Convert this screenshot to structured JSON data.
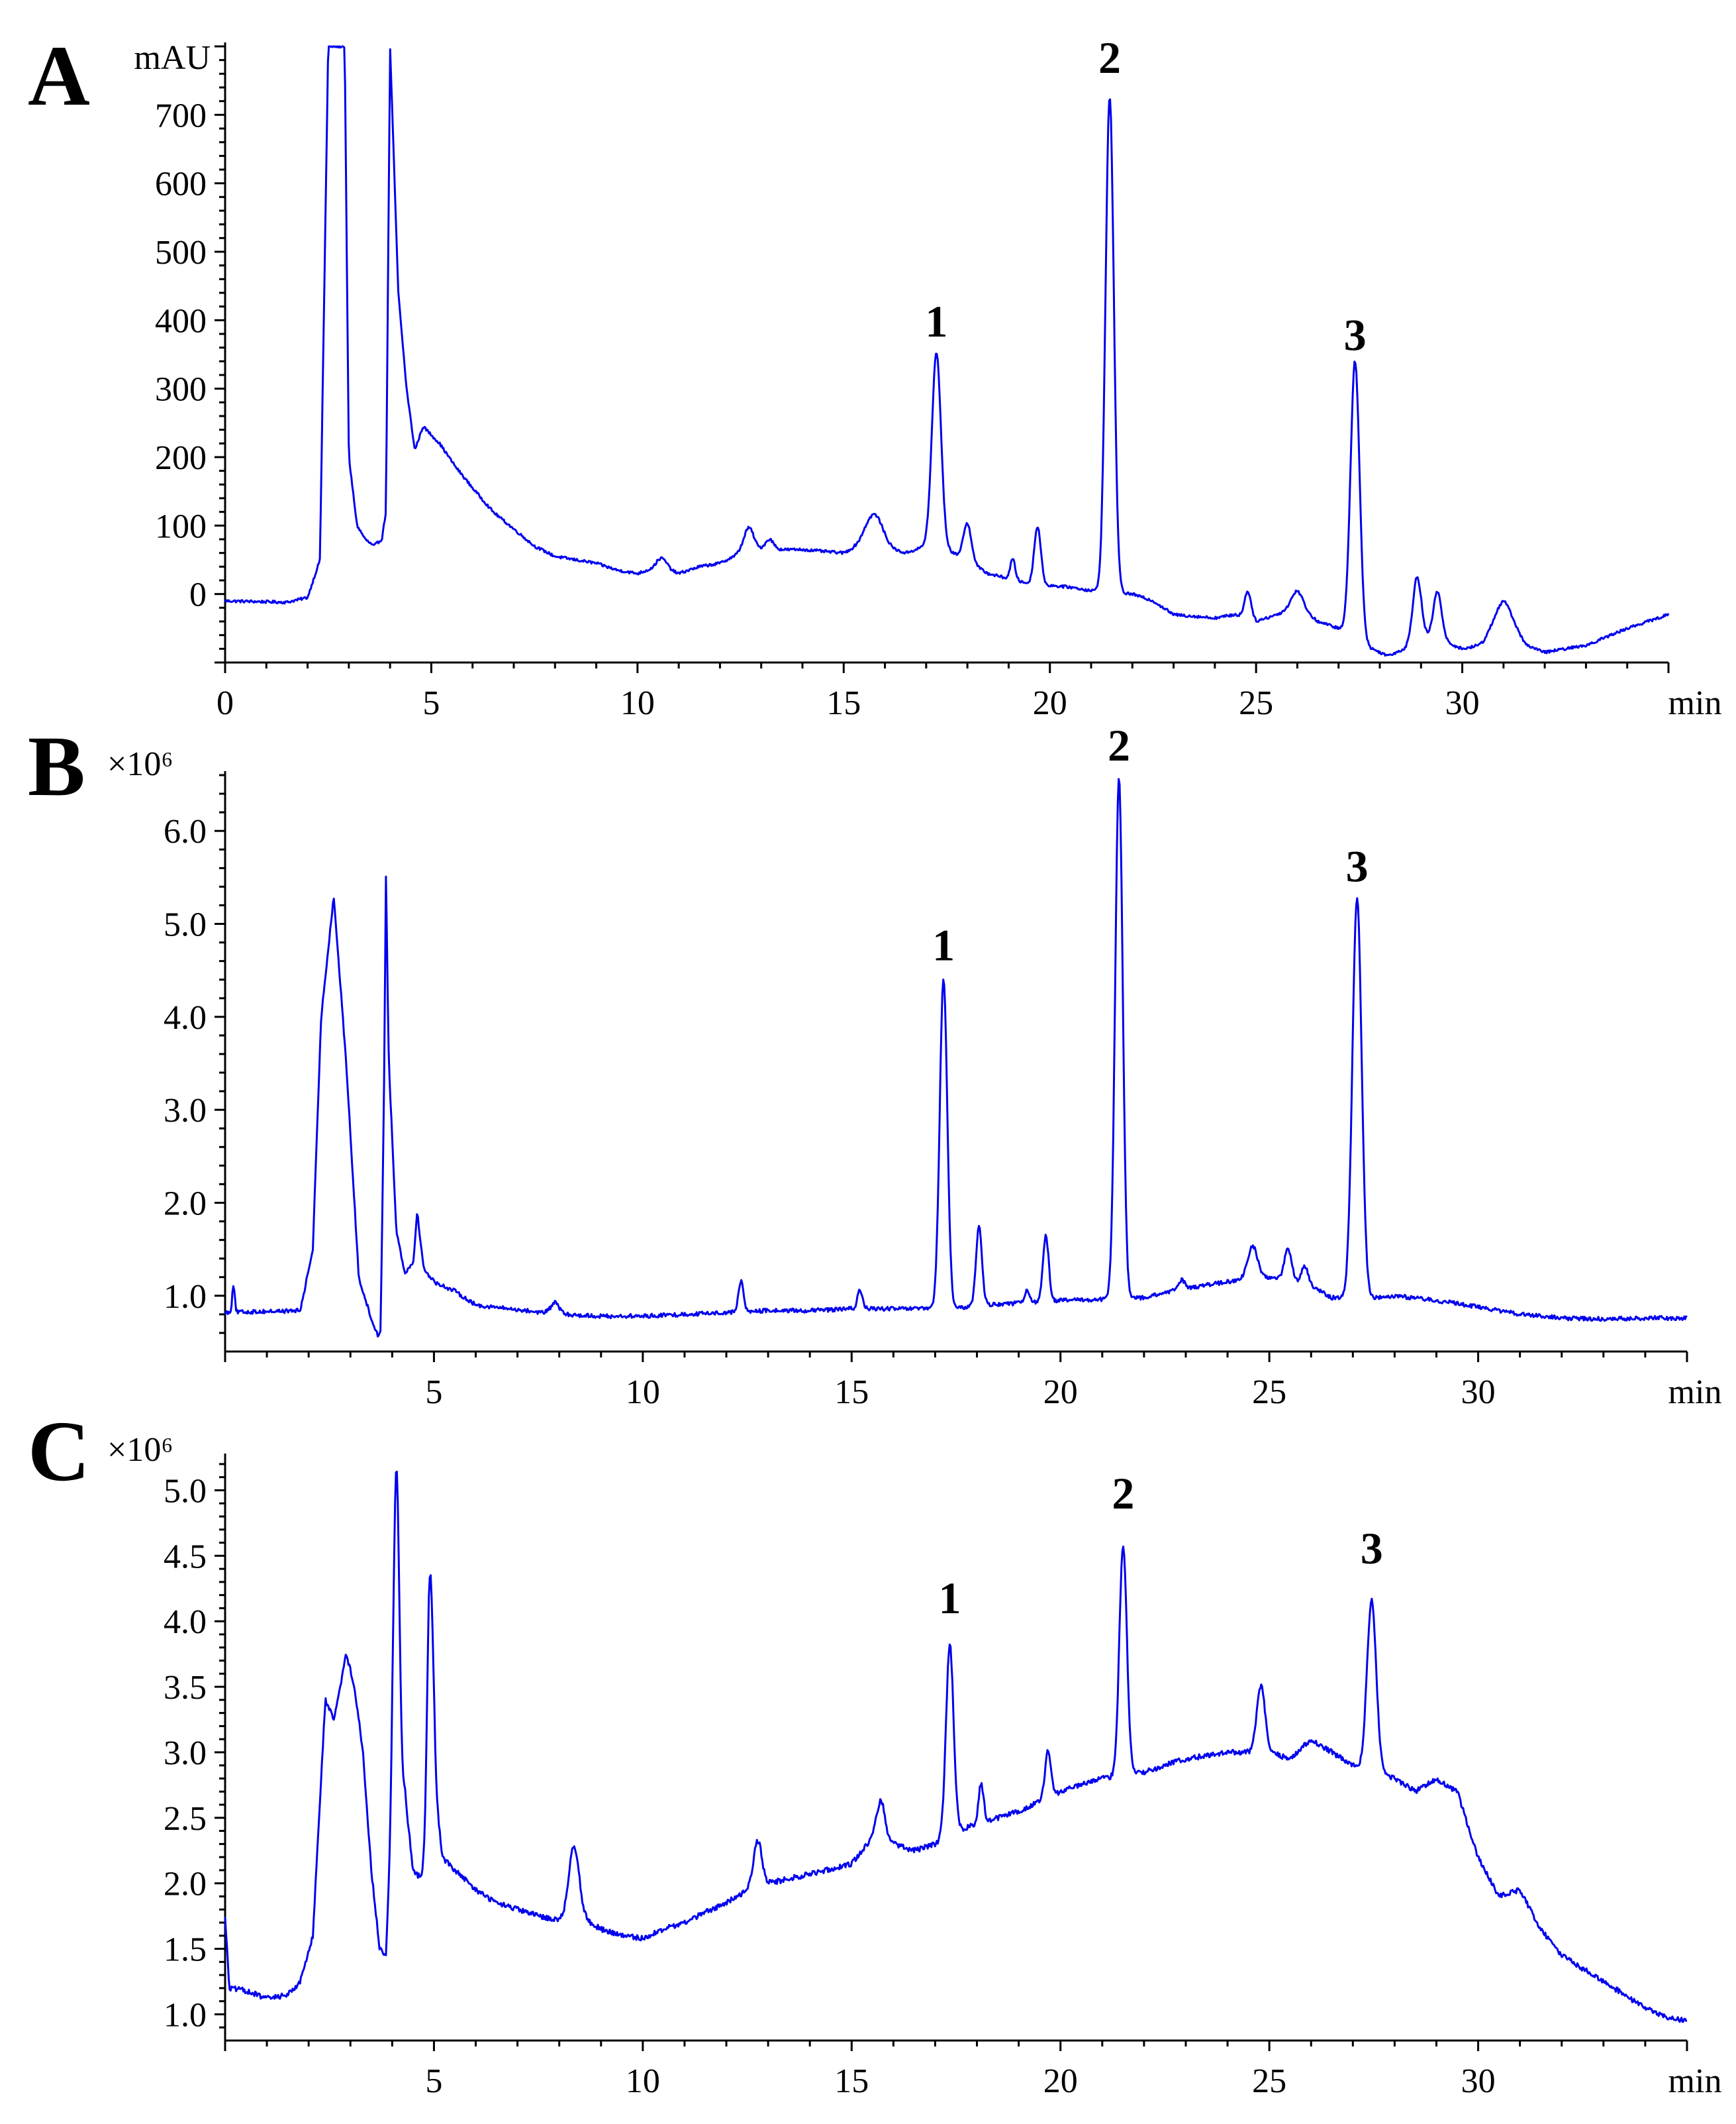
{
  "chart_data": [
    {
      "type": "line",
      "panel_label": "A",
      "ylabel": "mAU",
      "xlabel": "min",
      "xlim": [
        0,
        35
      ],
      "ylim": [
        -100,
        800
      ],
      "x_ticks": [
        0,
        5,
        10,
        15,
        20,
        25,
        30
      ],
      "x_tick_labels": [
        "0",
        "5",
        "10",
        "15",
        "20",
        "25",
        "30"
      ],
      "y_ticks": [
        0,
        100,
        200,
        300,
        400,
        500,
        600,
        700
      ],
      "y_tick_labels": [
        "0",
        "100",
        "200",
        "300",
        "400",
        "500",
        "600",
        "700"
      ],
      "color": "#0000ee",
      "clip_top": true,
      "baseline": [
        [
          0,
          -10
        ],
        [
          1.5,
          -12
        ],
        [
          2.0,
          -5
        ],
        [
          2.3,
          50
        ],
        [
          2.5,
          800
        ],
        [
          2.9,
          800
        ],
        [
          3.0,
          200
        ],
        [
          3.2,
          100
        ],
        [
          3.4,
          80
        ],
        [
          3.6,
          70
        ],
        [
          3.8,
          80
        ],
        [
          3.9,
          120
        ],
        [
          4.0,
          800
        ],
        [
          4.2,
          440
        ],
        [
          4.4,
          300
        ],
        [
          4.6,
          210
        ],
        [
          4.8,
          245
        ],
        [
          5.2,
          220
        ],
        [
          5.6,
          185
        ],
        [
          6.0,
          155
        ],
        [
          6.5,
          120
        ],
        [
          7.0,
          95
        ],
        [
          7.5,
          70
        ],
        [
          8.0,
          55
        ],
        [
          8.5,
          50
        ],
        [
          9.0,
          45
        ],
        [
          9.5,
          35
        ],
        [
          10.0,
          30
        ],
        [
          10.5,
          40
        ],
        [
          11.0,
          30
        ],
        [
          11.5,
          40
        ],
        [
          12.0,
          45
        ],
        [
          12.5,
          60
        ],
        [
          13.0,
          65
        ],
        [
          14.0,
          65
        ],
        [
          15.0,
          60
        ],
        [
          15.5,
          75
        ],
        [
          16.5,
          60
        ],
        [
          17.0,
          70
        ],
        [
          17.5,
          65
        ],
        [
          18.5,
          30
        ],
        [
          19.5,
          15
        ],
        [
          20.5,
          10
        ],
        [
          21.0,
          5
        ],
        [
          22.0,
          0
        ],
        [
          22.5,
          -10
        ],
        [
          23.0,
          -30
        ],
        [
          24.0,
          -35
        ],
        [
          24.5,
          -30
        ],
        [
          25.0,
          -40
        ],
        [
          26.0,
          -20
        ],
        [
          26.5,
          -40
        ],
        [
          27.0,
          -50
        ],
        [
          27.8,
          -80
        ],
        [
          28.2,
          -90
        ],
        [
          28.6,
          -80
        ],
        [
          29.0,
          -60
        ],
        [
          29.6,
          -70
        ],
        [
          30.0,
          -80
        ],
        [
          30.5,
          -75
        ],
        [
          31.0,
          -50
        ],
        [
          31.5,
          -75
        ],
        [
          32.0,
          -85
        ],
        [
          33.0,
          -75
        ],
        [
          34.0,
          -50
        ],
        [
          35.0,
          -30
        ]
      ],
      "peaks": [
        [
          10.6,
          14,
          0.12
        ],
        [
          12.7,
          35,
          0.12
        ],
        [
          13.2,
          15,
          0.1
        ],
        [
          15.75,
          45,
          0.2
        ],
        [
          18.0,
          55,
          0.1
        ],
        [
          19.1,
          30,
          0.06
        ],
        [
          19.7,
          85,
          0.08
        ],
        [
          24.8,
          40,
          0.08
        ],
        [
          26.0,
          25,
          0.15
        ],
        [
          28.9,
          90,
          0.1
        ],
        [
          29.4,
          70,
          0.1
        ],
        [
          31.0,
          40,
          0.25
        ],
        [
          17.25,
          285,
          0.11
        ],
        [
          21.45,
          725,
          0.1
        ],
        [
          27.4,
          405,
          0.11
        ]
      ],
      "noise": 2,
      "peak_labels": [
        {
          "label": "1",
          "x": 17.25,
          "y": 355
        },
        {
          "label": "2",
          "x": 21.45,
          "y": 740
        },
        {
          "label": "3",
          "x": 27.4,
          "y": 335
        }
      ]
    },
    {
      "type": "line",
      "panel_label": "B",
      "ylabel": "×10⁶",
      "xlabel": "min",
      "xlim": [
        0,
        35
      ],
      "ylim": [
        0.4,
        6.6
      ],
      "x_ticks": [
        5,
        10,
        15,
        20,
        25,
        30
      ],
      "x_tick_labels": [
        "5",
        "10",
        "15",
        "20",
        "25",
        "30"
      ],
      "y_ticks": [
        1.0,
        2.0,
        3.0,
        4.0,
        5.0,
        6.0
      ],
      "y_tick_labels": [
        "1.0",
        "2.0",
        "3.0",
        "4.0",
        "5.0",
        "6.0"
      ],
      "color": "#0000ee",
      "baseline": [
        [
          0,
          0.82
        ],
        [
          1.8,
          0.84
        ],
        [
          2.1,
          1.5
        ],
        [
          2.3,
          4.0
        ],
        [
          2.6,
          5.3
        ],
        [
          2.9,
          3.5
        ],
        [
          3.2,
          1.2
        ],
        [
          3.5,
          0.75
        ],
        [
          3.65,
          0.58
        ],
        [
          3.72,
          0.6
        ],
        [
          3.8,
          3.0
        ],
        [
          3.85,
          5.5
        ],
        [
          3.92,
          3.5
        ],
        [
          4.1,
          1.7
        ],
        [
          4.3,
          1.25
        ],
        [
          4.5,
          1.35
        ],
        [
          4.6,
          1.9
        ],
        [
          4.75,
          1.3
        ],
        [
          5.0,
          1.15
        ],
        [
          5.5,
          1.05
        ],
        [
          6.0,
          0.9
        ],
        [
          7.0,
          0.85
        ],
        [
          8.0,
          0.8
        ],
        [
          9.0,
          0.78
        ],
        [
          10.0,
          0.78
        ],
        [
          11.0,
          0.8
        ],
        [
          12.0,
          0.82
        ],
        [
          13.0,
          0.84
        ],
        [
          14.0,
          0.84
        ],
        [
          15.0,
          0.86
        ],
        [
          16.0,
          0.86
        ],
        [
          17.0,
          0.86
        ],
        [
          17.5,
          0.86
        ],
        [
          18.0,
          0.9
        ],
        [
          19.0,
          0.92
        ],
        [
          20.0,
          0.95
        ],
        [
          21.0,
          0.96
        ],
        [
          22.0,
          0.98
        ],
        [
          23.0,
          1.08
        ],
        [
          24.0,
          1.15
        ],
        [
          25.0,
          1.2
        ],
        [
          26.0,
          1.1
        ],
        [
          26.5,
          0.98
        ],
        [
          27.5,
          0.98
        ],
        [
          28.0,
          1.0
        ],
        [
          29.0,
          0.95
        ],
        [
          30.0,
          0.88
        ],
        [
          31.0,
          0.8
        ],
        [
          32.0,
          0.76
        ],
        [
          33.0,
          0.75
        ],
        [
          34.0,
          0.76
        ],
        [
          35.0,
          0.76
        ]
      ],
      "peaks": [
        [
          0.2,
          0.3,
          0.03
        ],
        [
          7.9,
          0.12,
          0.1
        ],
        [
          12.35,
          0.33,
          0.06
        ],
        [
          15.2,
          0.2,
          0.06
        ],
        [
          18.05,
          0.85,
          0.07
        ],
        [
          19.2,
          0.15,
          0.05
        ],
        [
          19.65,
          0.7,
          0.07
        ],
        [
          22.9,
          0.1,
          0.08
        ],
        [
          24.6,
          0.35,
          0.12
        ],
        [
          25.45,
          0.35,
          0.09
        ],
        [
          25.85,
          0.2,
          0.08
        ],
        [
          17.2,
          3.55,
          0.09
        ],
        [
          21.4,
          5.6,
          0.09
        ],
        [
          27.1,
          4.3,
          0.11
        ]
      ],
      "noise": 0.022,
      "peak_labels": [
        {
          "label": "1",
          "x": 17.2,
          "y": 4.45
        },
        {
          "label": "2",
          "x": 21.4,
          "y": 6.6
        },
        {
          "label": "3",
          "x": 27.1,
          "y": 5.3
        }
      ]
    },
    {
      "type": "line",
      "panel_label": "C",
      "ylabel": "×10⁶",
      "xlabel": "min",
      "xlim": [
        0,
        35
      ],
      "ylim": [
        0.8,
        5.25
      ],
      "x_ticks": [
        5,
        10,
        15,
        20,
        25,
        30
      ],
      "x_tick_labels": [
        "5",
        "10",
        "15",
        "20",
        "25",
        "30"
      ],
      "y_ticks": [
        1.0,
        1.5,
        2.0,
        2.5,
        3.0,
        3.5,
        4.0,
        4.5,
        5.0
      ],
      "y_tick_labels": [
        "1.0",
        "1.5",
        "2.0",
        "2.5",
        "3.0",
        "3.5",
        "4.0",
        "4.5",
        "5.0"
      ],
      "color": "#0000ee",
      "baseline": [
        [
          0,
          1.75
        ],
        [
          0.1,
          1.2
        ],
        [
          0.5,
          1.18
        ],
        [
          1.0,
          1.12
        ],
        [
          1.5,
          1.15
        ],
        [
          1.8,
          1.25
        ],
        [
          2.1,
          1.6
        ],
        [
          2.4,
          3.4
        ],
        [
          2.6,
          3.25
        ],
        [
          2.9,
          3.75
        ],
        [
          3.1,
          3.5
        ],
        [
          3.3,
          3.0
        ],
        [
          3.5,
          2.1
        ],
        [
          3.7,
          1.5
        ],
        [
          3.85,
          1.45
        ],
        [
          4.0,
          2.5
        ],
        [
          4.3,
          2.7
        ],
        [
          4.5,
          2.1
        ],
        [
          4.8,
          2.0
        ],
        [
          5.0,
          2.8
        ],
        [
          5.2,
          2.2
        ],
        [
          5.5,
          2.1
        ],
        [
          6.0,
          1.95
        ],
        [
          6.5,
          1.85
        ],
        [
          7.0,
          1.8
        ],
        [
          7.5,
          1.75
        ],
        [
          8.0,
          1.72
        ],
        [
          8.5,
          1.75
        ],
        [
          9.0,
          1.65
        ],
        [
          9.5,
          1.6
        ],
        [
          10.0,
          1.58
        ],
        [
          10.5,
          1.65
        ],
        [
          11.0,
          1.7
        ],
        [
          11.5,
          1.78
        ],
        [
          12.0,
          1.85
        ],
        [
          12.5,
          1.95
        ],
        [
          13.0,
          2.0
        ],
        [
          14.0,
          2.07
        ],
        [
          15.0,
          2.15
        ],
        [
          15.5,
          2.35
        ],
        [
          16.0,
          2.3
        ],
        [
          16.5,
          2.25
        ],
        [
          17.0,
          2.3
        ],
        [
          17.5,
          2.4
        ],
        [
          18.0,
          2.45
        ],
        [
          19.0,
          2.55
        ],
        [
          20.0,
          2.7
        ],
        [
          21.0,
          2.8
        ],
        [
          22.0,
          2.85
        ],
        [
          23.0,
          2.95
        ],
        [
          24.0,
          3.0
        ],
        [
          25.0,
          3.0
        ],
        [
          25.5,
          2.95
        ],
        [
          26.0,
          3.1
        ],
        [
          26.5,
          3.0
        ],
        [
          27.0,
          2.9
        ],
        [
          27.5,
          2.85
        ],
        [
          28.0,
          2.8
        ],
        [
          28.5,
          2.7
        ],
        [
          29.0,
          2.8
        ],
        [
          29.5,
          2.7
        ],
        [
          30.0,
          2.2
        ],
        [
          30.5,
          1.9
        ],
        [
          31.0,
          1.95
        ],
        [
          31.5,
          1.65
        ],
        [
          32.0,
          1.45
        ],
        [
          32.5,
          1.35
        ],
        [
          33.0,
          1.25
        ],
        [
          33.5,
          1.15
        ],
        [
          34.0,
          1.05
        ],
        [
          34.5,
          0.98
        ],
        [
          35.0,
          0.95
        ]
      ],
      "peaks": [
        [
          4.1,
          2.6,
          0.07
        ],
        [
          4.9,
          1.95,
          0.07
        ],
        [
          8.35,
          0.55,
          0.12
        ],
        [
          12.75,
          0.35,
          0.1
        ],
        [
          15.7,
          0.3,
          0.1
        ],
        [
          18.1,
          0.3,
          0.06
        ],
        [
          19.7,
          0.35,
          0.07
        ],
        [
          24.8,
          0.5,
          0.1
        ],
        [
          17.35,
          1.45,
          0.09
        ],
        [
          21.5,
          1.75,
          0.09
        ],
        [
          27.45,
          1.3,
          0.11
        ]
      ],
      "noise": 0.02,
      "peak_labels": [
        {
          "label": "1",
          "x": 17.35,
          "y": 3.95
        },
        {
          "label": "2",
          "x": 21.5,
          "y": 4.75
        },
        {
          "label": "3",
          "x": 27.45,
          "y": 4.33
        }
      ]
    }
  ]
}
